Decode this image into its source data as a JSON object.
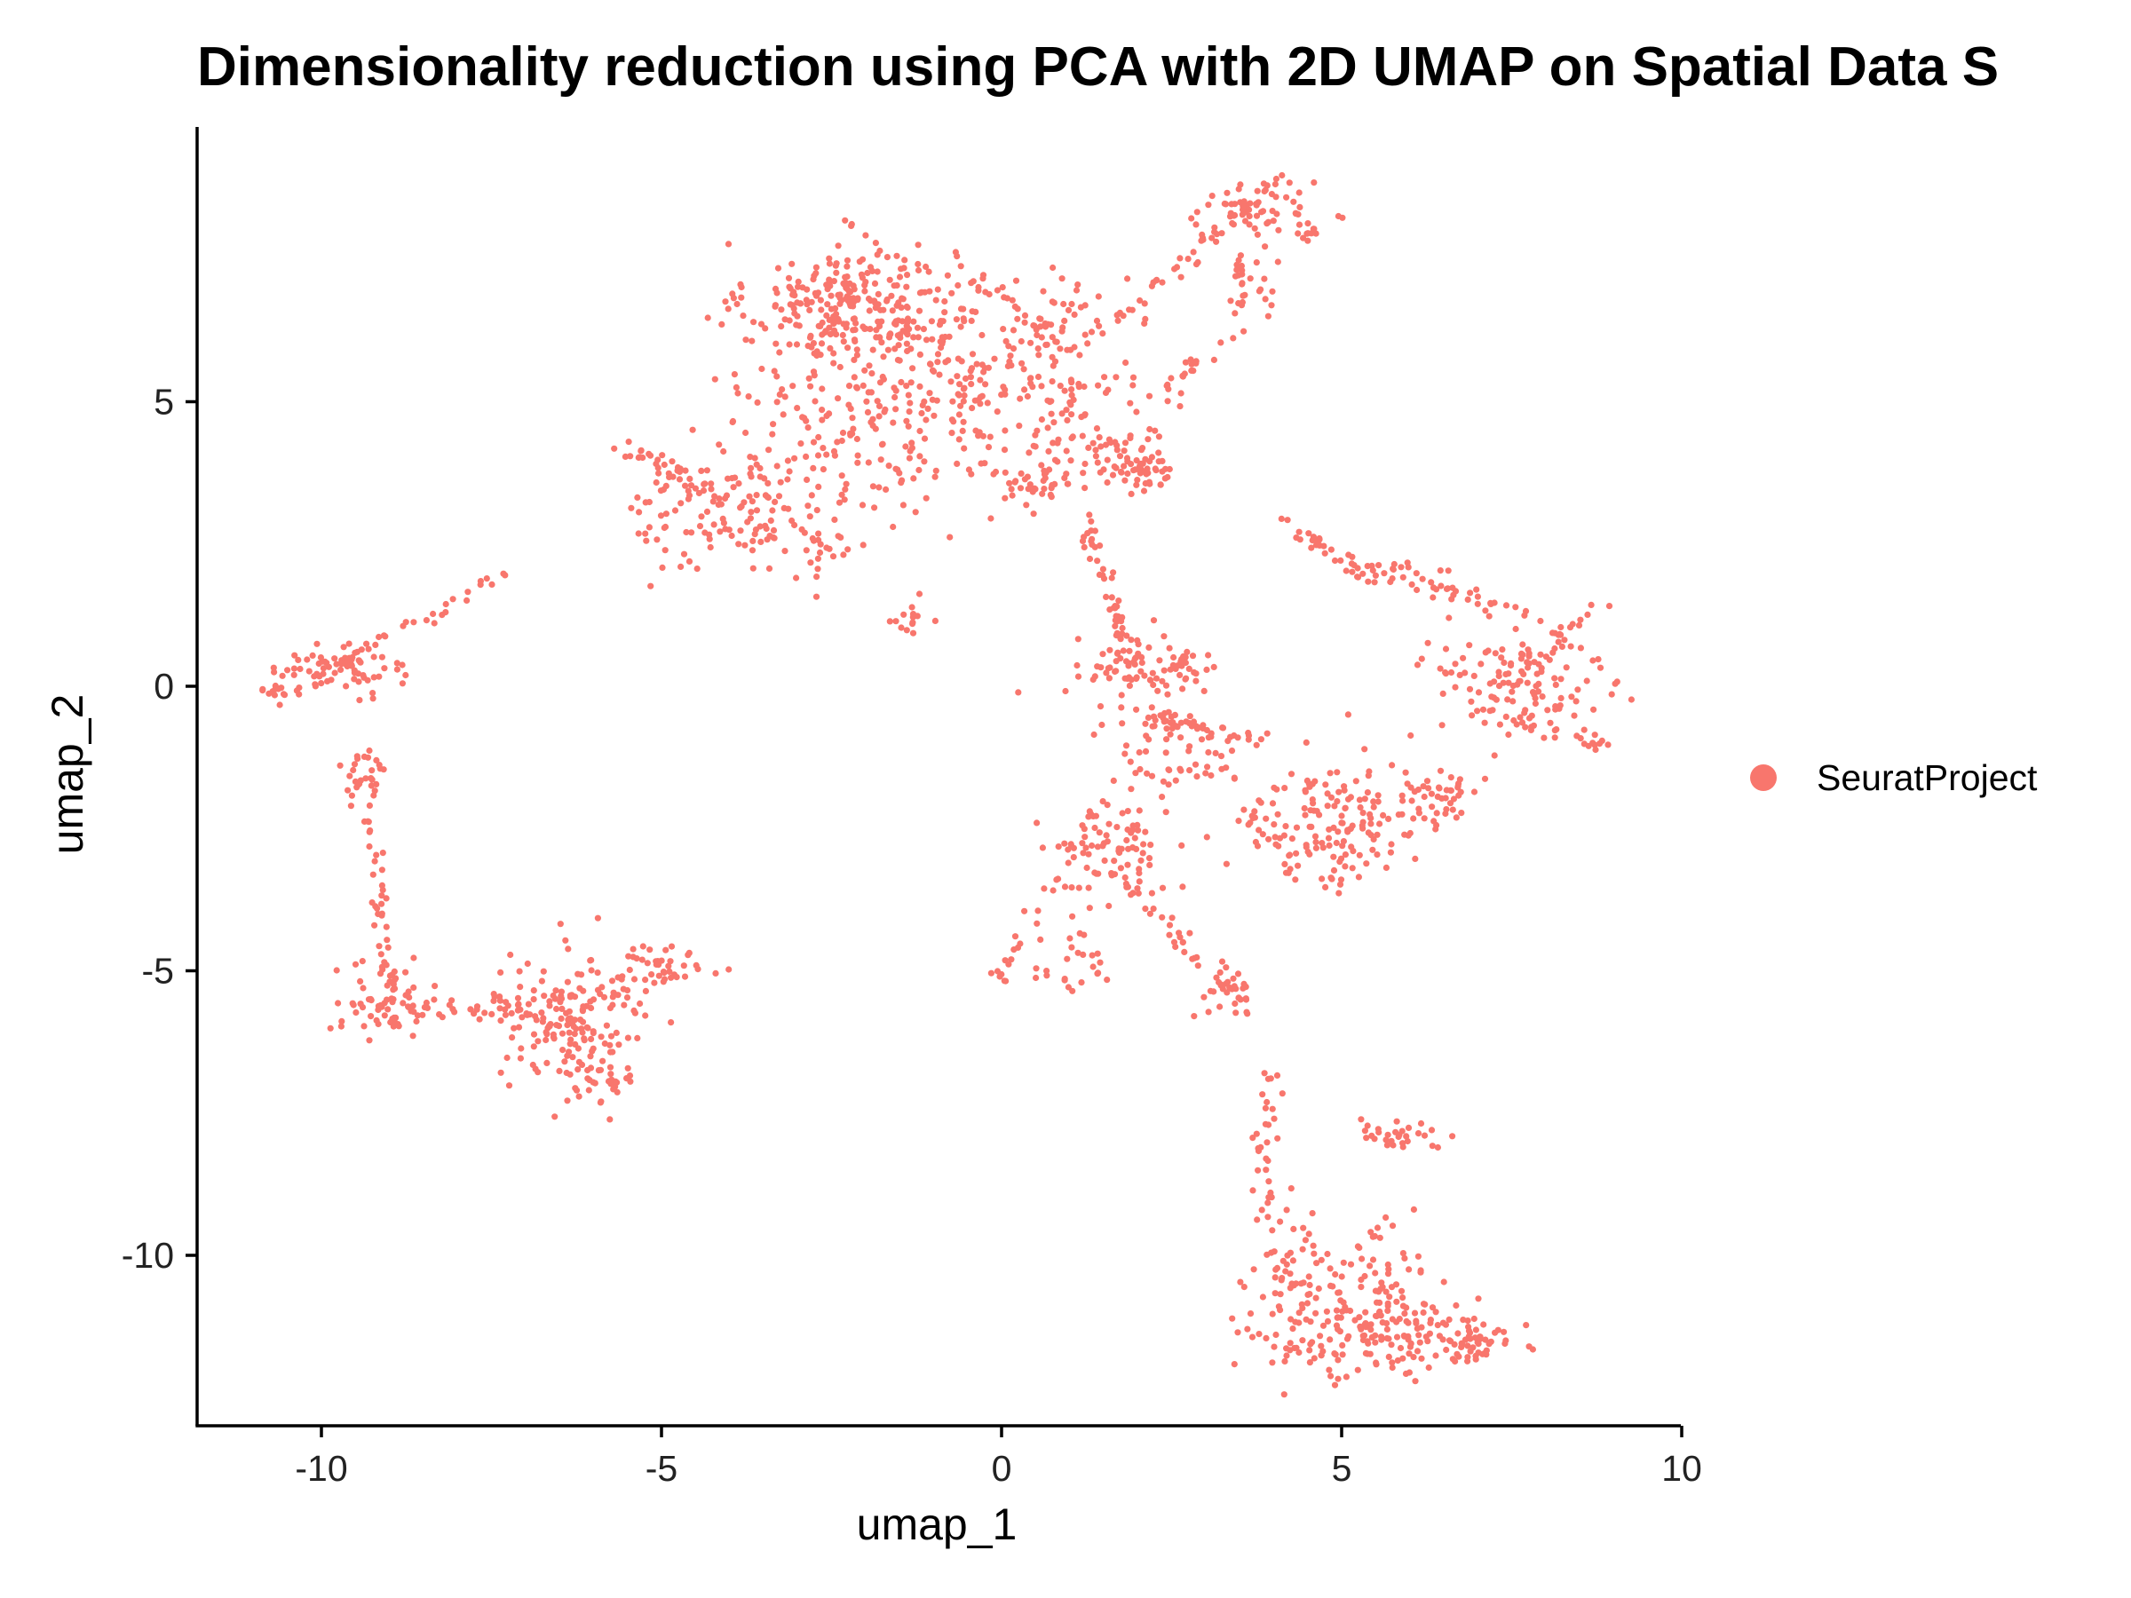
{
  "chart_data": {
    "type": "scatter",
    "title": "Dimensionality reduction using PCA with 2D UMAP on Spatial Data S",
    "xlabel": "umap_1",
    "ylabel": "umap_2",
    "xlim": [
      -12,
      10
    ],
    "ylim": [
      -13,
      10
    ],
    "x_ticks": [
      "-10",
      "-5",
      "0",
      "5",
      "10"
    ],
    "y_ticks": [
      "-10",
      "-5",
      "0",
      "5"
    ],
    "grid": false,
    "legend_position": "right",
    "series": [
      {
        "name": "SeuratProject",
        "color": "#F8766D",
        "clusters": [
          {
            "center": [
              -2.2,
              6.7
            ],
            "spread": [
              0.75,
              0.55
            ],
            "n": 260
          },
          {
            "center": [
              -0.6,
              5.4
            ],
            "spread": [
              1.3,
              0.9
            ],
            "n": 240
          },
          {
            "center": [
              -2.5,
              4.2
            ],
            "spread": [
              1.1,
              0.8
            ],
            "n": 120
          },
          {
            "center": [
              -4.0,
              3.0
            ],
            "spread": [
              0.75,
              0.5
            ],
            "n": 110
          },
          {
            "center": [
              1.5,
              4.4
            ],
            "spread": [
              0.5,
              0.5
            ],
            "n": 70
          },
          {
            "center": [
              2.1,
              3.8
            ],
            "spread": [
              0.2,
              0.15
            ],
            "n": 40
          },
          {
            "center": [
              0.5,
              3.5
            ],
            "spread": [
              0.3,
              0.2
            ],
            "n": 35
          },
          {
            "center": [
              -1.3,
              1.2
            ],
            "spread": [
              0.25,
              0.15
            ],
            "n": 14
          },
          {
            "center": [
              -2.7,
              2.3
            ],
            "spread": [
              0.3,
              0.2
            ],
            "n": 14
          },
          {
            "center": [
              1.2,
              6.5
            ],
            "spread": [
              0.35,
              0.35
            ],
            "n": 30
          },
          {
            "center": [
              3.7,
              8.4
            ],
            "spread": [
              0.45,
              0.25
            ],
            "n": 60
          },
          {
            "center": [
              3.6,
              7.1
            ],
            "spread": [
              0.18,
              0.4
            ],
            "n": 30
          },
          {
            "center": [
              4.5,
              8.0
            ],
            "spread": [
              0.1,
              0.1
            ],
            "n": 10
          },
          {
            "center": [
              -9.7,
              0.3
            ],
            "spread": [
              0.45,
              0.2
            ],
            "n": 75
          },
          {
            "center": [
              -10.6,
              -0.1
            ],
            "spread": [
              0.15,
              0.1
            ],
            "n": 12
          },
          {
            "center": [
              -9.4,
              -1.6
            ],
            "spread": [
              0.2,
              0.35
            ],
            "n": 25
          },
          {
            "center": [
              -9.0,
              -5.5
            ],
            "spread": [
              0.35,
              0.3
            ],
            "n": 70
          },
          {
            "center": [
              -6.3,
              -5.9
            ],
            "spread": [
              0.55,
              0.55
            ],
            "n": 160
          },
          {
            "center": [
              -5.9,
              -7.0
            ],
            "spread": [
              0.25,
              0.2
            ],
            "n": 30
          },
          {
            "center": [
              -5.0,
              -4.9
            ],
            "spread": [
              0.4,
              0.2
            ],
            "n": 40
          },
          {
            "center": [
              -7.4,
              -5.6
            ],
            "spread": [
              0.45,
              0.12
            ],
            "n": 30
          },
          {
            "center": [
              1.9,
              0.2
            ],
            "spread": [
              0.4,
              0.35
            ],
            "n": 65
          },
          {
            "center": [
              2.6,
              0.3
            ],
            "spread": [
              0.25,
              0.2
            ],
            "n": 30
          },
          {
            "center": [
              4.9,
              -2.4
            ],
            "spread": [
              0.7,
              0.55
            ],
            "n": 150
          },
          {
            "center": [
              7.5,
              0.1
            ],
            "spread": [
              0.75,
              0.6
            ],
            "n": 120
          },
          {
            "center": [
              5.8,
              2.0
            ],
            "spread": [
              0.4,
              0.08
            ],
            "n": 20
          },
          {
            "center": [
              6.4,
              -2.0
            ],
            "spread": [
              0.35,
              0.3
            ],
            "n": 40
          },
          {
            "center": [
              2.5,
              -1.2
            ],
            "spread": [
              0.5,
              0.5
            ],
            "n": 50
          },
          {
            "center": [
              1.6,
              -3.0
            ],
            "spread": [
              0.4,
              0.45
            ],
            "n": 80
          },
          {
            "center": [
              0.9,
              -4.8
            ],
            "spread": [
              0.4,
              0.35
            ],
            "n": 25
          },
          {
            "center": [
              3.4,
              -5.3
            ],
            "spread": [
              0.25,
              0.3
            ],
            "n": 25
          },
          {
            "center": [
              4.3,
              -10.5
            ],
            "spread": [
              0.3,
              0.6
            ],
            "n": 70
          },
          {
            "center": [
              5.7,
              -11.4
            ],
            "spread": [
              0.9,
              0.4
            ],
            "n": 180
          },
          {
            "center": [
              7.0,
              -11.5
            ],
            "spread": [
              0.2,
              0.15
            ],
            "n": 30
          },
          {
            "center": [
              5.4,
              -10.3
            ],
            "spread": [
              0.35,
              0.4
            ],
            "n": 40
          },
          {
            "center": [
              5.8,
              -7.9
            ],
            "spread": [
              0.35,
              0.12
            ],
            "n": 20
          }
        ],
        "paths": [
          {
            "from": [
              -9.9,
              0.3
            ],
            "to": [
              -7.3,
              2.0
            ],
            "n": 30
          },
          {
            "from": [
              -9.4,
              -1.2
            ],
            "to": [
              -9.0,
              -5.2
            ],
            "n": 40
          },
          {
            "from": [
              -5.5,
              4.2
            ],
            "to": [
              -4.0,
              3.2
            ],
            "n": 35
          },
          {
            "from": [
              1.6,
              6.3
            ],
            "to": [
              2.9,
              7.7
            ],
            "n": 20
          },
          {
            "from": [
              2.9,
              7.7
            ],
            "to": [
              3.6,
              8.5
            ],
            "n": 18
          },
          {
            "from": [
              2.3,
              5.0
            ],
            "to": [
              3.5,
              6.3
            ],
            "n": 20
          },
          {
            "from": [
              -0.5,
              7.2
            ],
            "to": [
              1.1,
              5.8
            ],
            "n": 30
          },
          {
            "from": [
              1.2,
              3.0
            ],
            "to": [
              1.9,
              0.5
            ],
            "n": 45
          },
          {
            "from": [
              2.2,
              -0.6
            ],
            "to": [
              4.3,
              -1.0
            ],
            "n": 35
          },
          {
            "from": [
              4.1,
              2.9
            ],
            "to": [
              5.3,
              2.0
            ],
            "n": 25
          },
          {
            "from": [
              5.3,
              2.0
            ],
            "to": [
              7.8,
              1.3
            ],
            "n": 30
          },
          {
            "from": [
              7.5,
              0.2
            ],
            "to": [
              8.9,
              1.5
            ],
            "n": 22
          },
          {
            "from": [
              7.4,
              -0.6
            ],
            "to": [
              9.0,
              -1.1
            ],
            "n": 24
          },
          {
            "from": [
              3.0,
              -1.2
            ],
            "to": [
              4.4,
              -3.3
            ],
            "n": 20
          },
          {
            "from": [
              1.4,
              -2.0
            ],
            "to": [
              -0.1,
              -5.4
            ],
            "n": 30
          },
          {
            "from": [
              1.9,
              -3.6
            ],
            "to": [
              3.7,
              -5.8
            ],
            "n": 30
          },
          {
            "from": [
              4.0,
              -6.8
            ],
            "to": [
              3.8,
              -9.5
            ],
            "n": 32
          },
          {
            "from": [
              5.2,
              -7.7
            ],
            "to": [
              5.9,
              -8.1
            ],
            "n": 10
          }
        ]
      }
    ]
  }
}
